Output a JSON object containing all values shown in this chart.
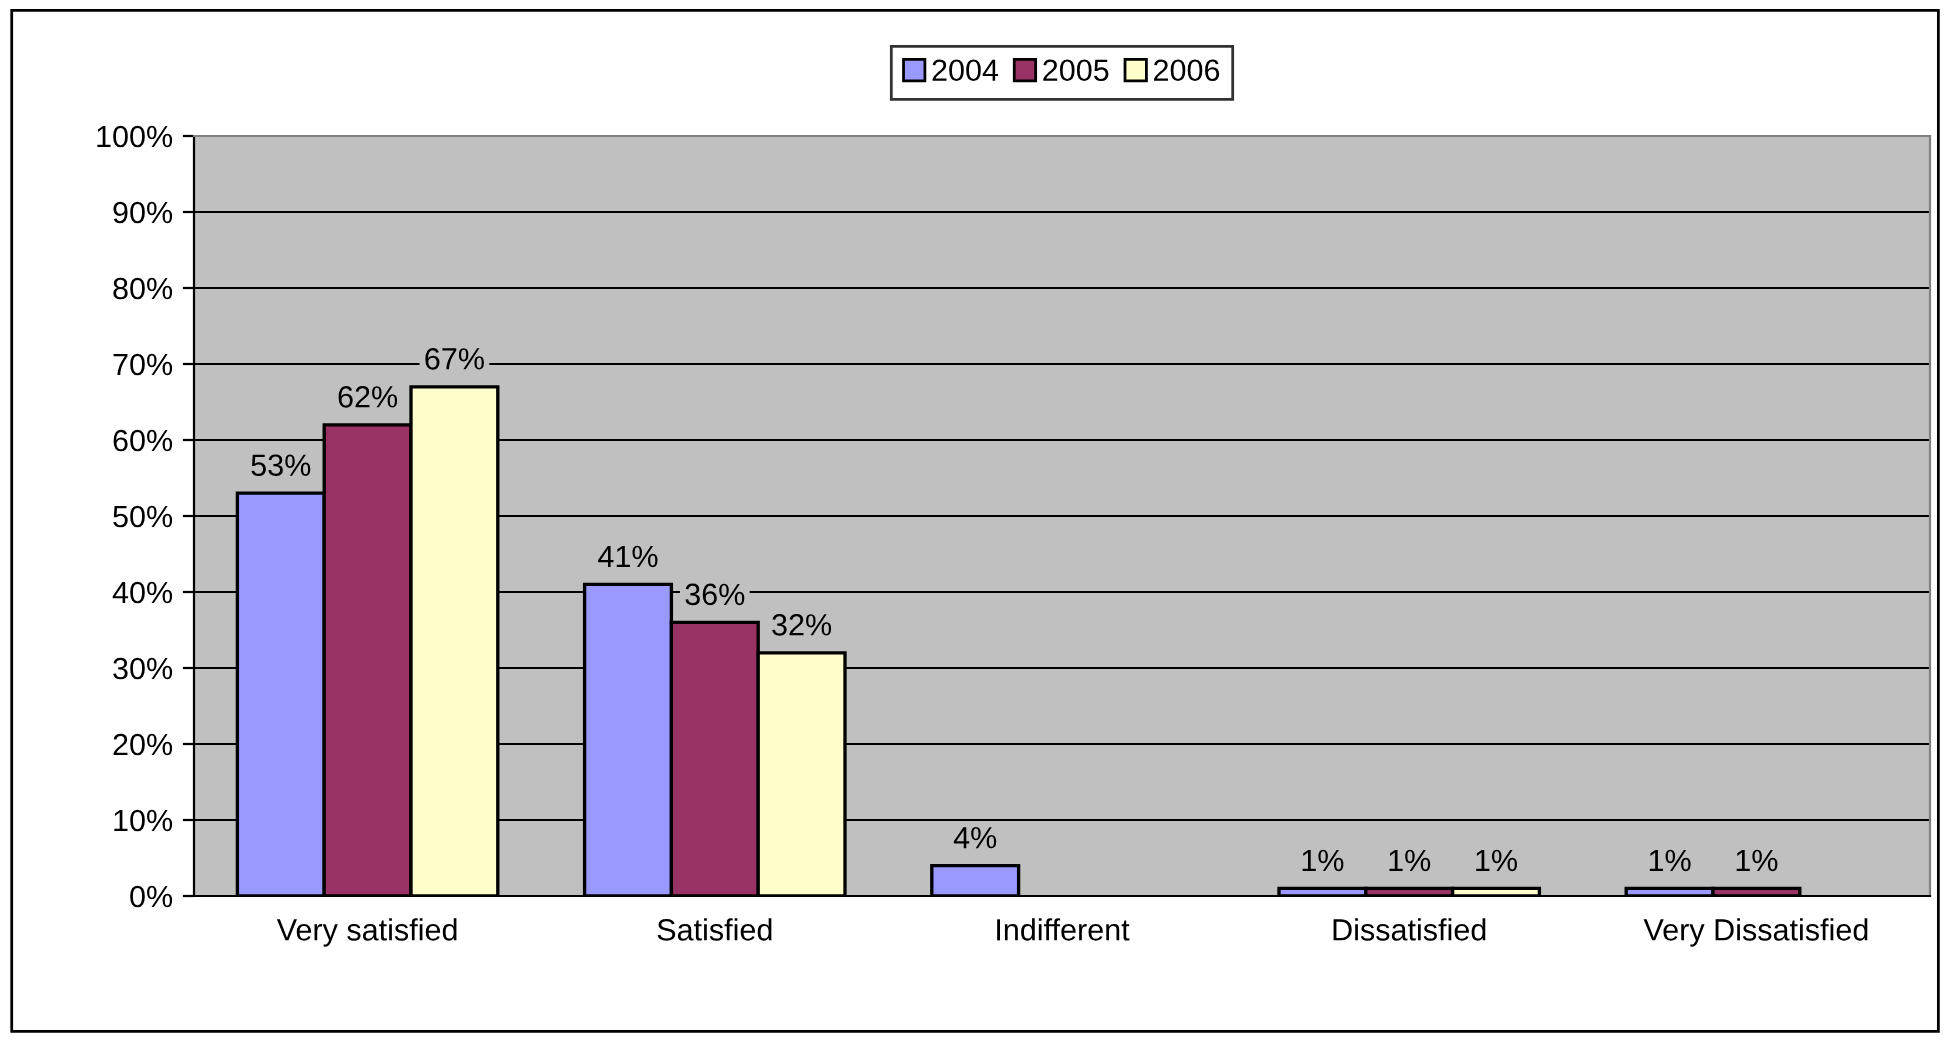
{
  "chart_data": {
    "type": "bar",
    "categories": [
      "Very satisfied",
      "Satisfied",
      "Indifferent",
      "Dissatisfied",
      "Very Dissatisfied"
    ],
    "series": [
      {
        "name": "2004",
        "color": "#9999ff",
        "values": [
          53,
          41,
          4,
          1,
          1
        ],
        "value_labels": [
          "53%",
          "41%",
          "4%",
          "1%",
          "1%"
        ]
      },
      {
        "name": "2005",
        "color": "#993366",
        "values": [
          62,
          36,
          null,
          1,
          1
        ],
        "value_labels": [
          "62%",
          "36%",
          null,
          "1%",
          "1%"
        ]
      },
      {
        "name": "2006",
        "color": "#ffffcc",
        "values": [
          67,
          32,
          null,
          1,
          null
        ],
        "value_labels": [
          "67%",
          "32%",
          null,
          "1%",
          null
        ]
      }
    ],
    "ylim": [
      0,
      100
    ],
    "yticks": [
      {
        "value": 0,
        "label": "0%"
      },
      {
        "value": 10,
        "label": "10%"
      },
      {
        "value": 20,
        "label": "20%"
      },
      {
        "value": 30,
        "label": "30%"
      },
      {
        "value": 40,
        "label": "40%"
      },
      {
        "value": 50,
        "label": "50%"
      },
      {
        "value": 60,
        "label": "60%"
      },
      {
        "value": 70,
        "label": "70%"
      },
      {
        "value": 80,
        "label": "80%"
      },
      {
        "value": 90,
        "label": "90%"
      },
      {
        "value": 100,
        "label": "100%"
      }
    ],
    "grid": "y",
    "legend": "top"
  }
}
